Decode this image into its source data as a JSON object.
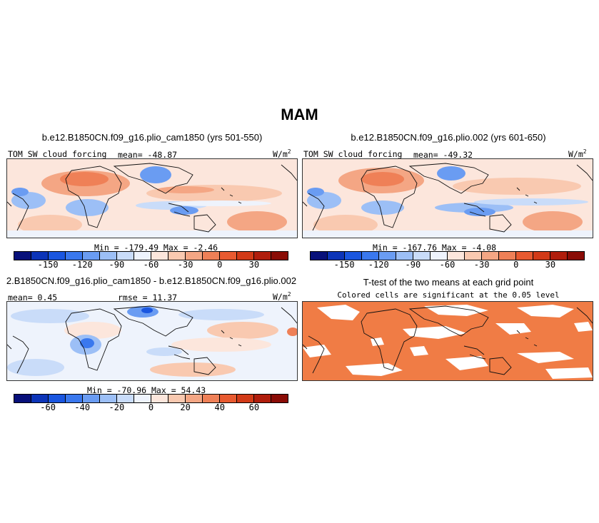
{
  "figure": {
    "title": "MAM"
  },
  "panels": {
    "p1": {
      "title": "b.e12.B1850CN.f09_g16.plio_cam1850 (yrs 501-550)",
      "var_label": "TOM SW cloud forcing",
      "mean_label": "mean= -48.87",
      "units": "W/m",
      "units_sup": "2",
      "minmax_label": "Min = -179.49  Max =   -2.46"
    },
    "p2": {
      "title": "b.e12.B1850CN.f09_g16.plio.002 (yrs 601-650)",
      "var_label": "TOM SW cloud forcing",
      "mean_label": "mean= -49.32",
      "units": "W/m",
      "units_sup": "2",
      "minmax_label": "Min = -167.76  Max =   -4.08"
    },
    "p3": {
      "title": "2.B1850CN.f09_g16.plio_cam1850 - b.e12.B1850CN.f09_g16.plio.002",
      "mean_label": "mean=   0.45",
      "rmse_label": "rmse =  11.37",
      "units": "W/m",
      "units_sup": "2",
      "minmax_label": "Min = -70.96  Max =  54.43"
    },
    "p4": {
      "title": "T-test of the two means at each grid point",
      "subtitle": "Colored cells are significant at the 0.05 level",
      "significant_color": "#f07c45"
    }
  },
  "colorbars": {
    "absolute": {
      "colors": [
        "#08107a",
        "#0c34b8",
        "#1a56e0",
        "#3a78ee",
        "#6a9cf2",
        "#9cbff6",
        "#c9dcf9",
        "#eef3fc",
        "#fce6dc",
        "#f9c9b0",
        "#f4a684",
        "#ef8057",
        "#e85a30",
        "#d23a17",
        "#b01d0c",
        "#8a0c06"
      ],
      "ticks": [
        "-150",
        "-120",
        "-90",
        "-60",
        "-30",
        "0",
        "30"
      ]
    },
    "difference": {
      "colors": [
        "#08107a",
        "#0c34b8",
        "#1a56e0",
        "#3a78ee",
        "#6a9cf2",
        "#9cbff6",
        "#c9dcf9",
        "#eef3fc",
        "#fce6dc",
        "#f9c9b0",
        "#f4a684",
        "#ef8057",
        "#e85a30",
        "#d23a17",
        "#b01d0c",
        "#8a0c06"
      ],
      "ticks": [
        "-60",
        "-40",
        "-20",
        "0",
        "20",
        "40",
        "60"
      ]
    }
  }
}
